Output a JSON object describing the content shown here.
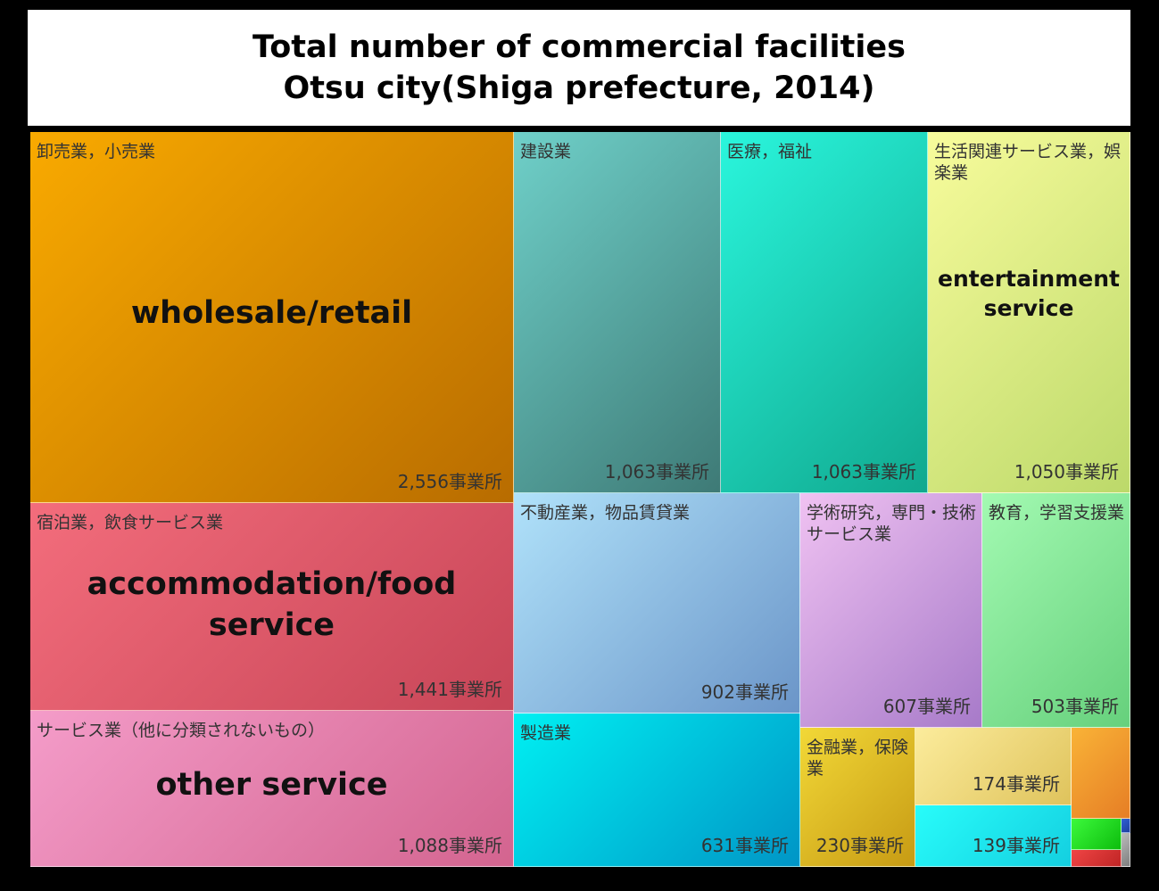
{
  "title": {
    "line1": "Total number of commercial facilities",
    "line2": "Otsu city(Shiga prefecture, 2014)"
  },
  "chart_data": {
    "type": "treemap",
    "unit": "事業所",
    "items": [
      {
        "category": "卸売業，小売業",
        "english": "wholesale/retail",
        "value": 2556,
        "value_label": "2,556事業所",
        "colors": [
          "#f9aa00",
          "#b86c00"
        ]
      },
      {
        "category": "宿泊業，飲食サービス業",
        "english": "accommodation/food service",
        "value": 1441,
        "value_label": "1,441事業所",
        "colors": [
          "#f36d7c",
          "#c74557"
        ]
      },
      {
        "category": "サービス業（他に分類されないもの）",
        "english": "other service",
        "value": 1088,
        "value_label": "1,088事業所",
        "colors": [
          "#f49cc9",
          "#d3648f"
        ]
      },
      {
        "category": "建設業",
        "english": "",
        "value": 1063,
        "value_label": "1,063事業所",
        "colors": [
          "#6fd0c9",
          "#3e7a76"
        ]
      },
      {
        "category": "医療，福祉",
        "english": "",
        "value": 1063,
        "value_label": "1,063事業所",
        "colors": [
          "#2af6dd",
          "#10a88e"
        ]
      },
      {
        "category": "生活関連サービス業，娯楽業",
        "english": "entertainment service",
        "value": 1050,
        "value_label": "1,050事業所",
        "colors": [
          "#f8fc9c",
          "#bcd96a"
        ]
      },
      {
        "category": "不動産業，物品賃貸業",
        "english": "",
        "value": 902,
        "value_label": "902事業所",
        "colors": [
          "#b0e2fa",
          "#6b95c8"
        ]
      },
      {
        "category": "学術研究，専門・技術サービス業",
        "english": "",
        "value": 607,
        "value_label": "607事業所",
        "colors": [
          "#f0c2f2",
          "#a77ac9"
        ]
      },
      {
        "category": "教育，学習支援業",
        "english": "",
        "value": 503,
        "value_label": "503事業所",
        "colors": [
          "#a3fab2",
          "#66d07c"
        ]
      },
      {
        "category": "製造業",
        "english": "",
        "value": 631,
        "value_label": "631事業所",
        "colors": [
          "#00f0f2",
          "#0095c6"
        ]
      },
      {
        "category": "金融業，保険業",
        "english": "",
        "value": 230,
        "value_label": "230事業所",
        "colors": [
          "#f2d837",
          "#c79b14"
        ]
      },
      {
        "category": "",
        "english": "",
        "value": 174,
        "value_label": "174事業所",
        "colors": [
          "#fcec9c",
          "#dfc35c"
        ]
      },
      {
        "category": "",
        "english": "",
        "value": 139,
        "value_label": "139事業所",
        "colors": [
          "#28fcfa",
          "#14cfe0"
        ]
      },
      {
        "category": "",
        "english": "",
        "value": null,
        "value_label": "",
        "colors": [
          "#f9b337",
          "#e67e25"
        ]
      },
      {
        "category": "",
        "english": "",
        "value": null,
        "value_label": "",
        "colors": [
          "#3cf93c",
          "#0dbd0d"
        ]
      },
      {
        "category": "",
        "english": "",
        "value": null,
        "value_label": "",
        "colors": [
          "#f04545",
          "#c02525"
        ]
      },
      {
        "category": "",
        "english": "",
        "value": null,
        "value_label": "",
        "colors": [
          "#2f62d9",
          "#1e3f9c"
        ]
      },
      {
        "category": "",
        "english": "",
        "value": null,
        "value_label": "",
        "colors": [
          "#bdbdbd",
          "#7d7d7d"
        ]
      }
    ]
  }
}
